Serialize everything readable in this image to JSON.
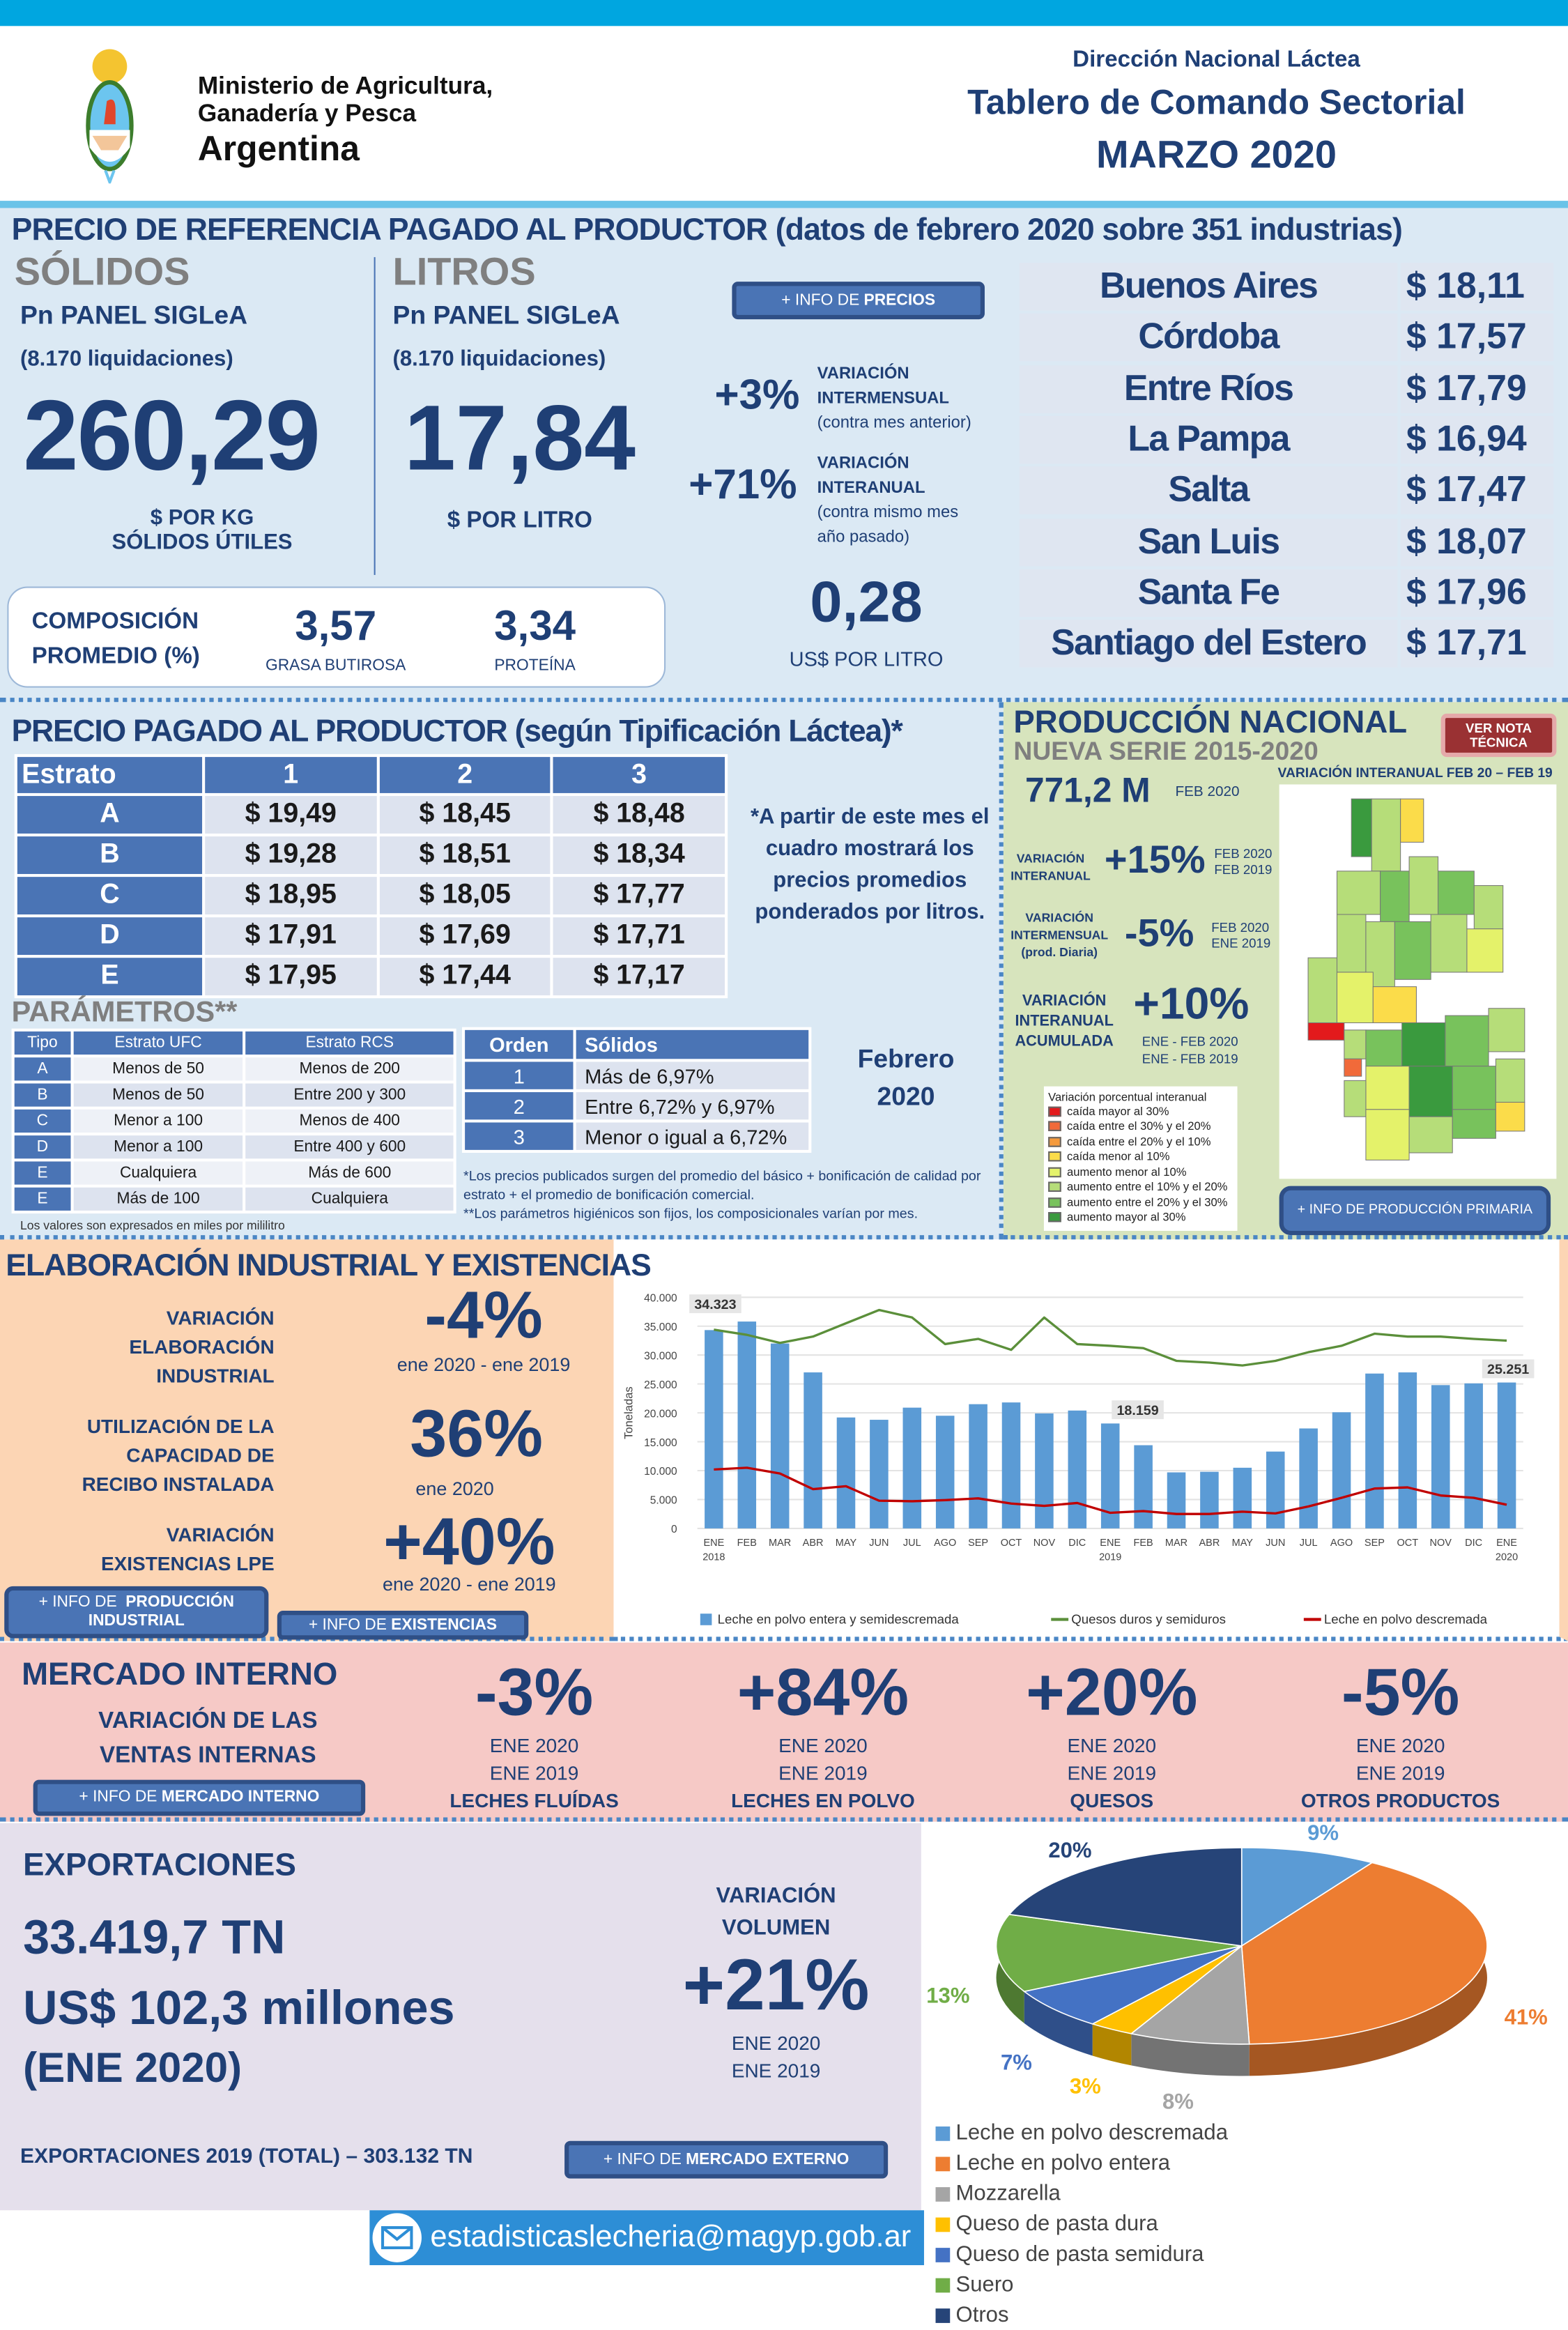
{
  "header": {
    "ministry_line1": "Ministerio de Agricultura,",
    "ministry_line2": "Ganadería y Pesca",
    "country": "Argentina",
    "direction": "Dirección Nacional Láctea",
    "title": "Tablero de Comando Sectorial",
    "period": "MARZO 2020"
  },
  "ref_price": {
    "title": "PRECIO DE REFERENCIA PAGADO AL PRODUCTOR (datos de febrero 2020 sobre 351 industrias)",
    "solidos": {
      "heading": "SÓLIDOS",
      "panel": "Pn PANEL SIGLeA",
      "liquidaciones": "(8.170 liquidaciones)",
      "value": "260,29",
      "unit_line1": "$ POR KG",
      "unit_line2": "SÓLIDOS ÚTILES"
    },
    "litros": {
      "heading": "LITROS",
      "panel": "Pn PANEL SIGLeA",
      "liquidaciones": "(8.170 liquidaciones)",
      "value": "17,84",
      "unit": "$ POR LITRO"
    },
    "info_button_prefix": "+ INFO DE",
    "info_button_bold": "PRECIOS",
    "var_intermensual": {
      "value": "+3%",
      "label1": "VARIACIÓN",
      "label2": "INTERMENSUAL",
      "note": "(contra mes anterior)"
    },
    "var_interanual": {
      "value": "+71%",
      "label1": "VARIACIÓN",
      "label2": "INTERANUAL",
      "note1": "(contra mismo mes",
      "note2": "año pasado)"
    },
    "usd": {
      "value": "0,28",
      "unit": "US$ POR LITRO"
    },
    "composicion": {
      "label1": "COMPOSICIÓN",
      "label2": "PROMEDIO (%)",
      "grasa": "3,57",
      "grasa_label": "GRASA BUTIROSA",
      "proteina": "3,34",
      "proteina_label": "PROTEÍNA"
    },
    "provinces": [
      {
        "name": "Buenos Aires",
        "price": "$ 18,11"
      },
      {
        "name": "Córdoba",
        "price": "$ 17,57"
      },
      {
        "name": "Entre Ríos",
        "price": "$ 17,79"
      },
      {
        "name": "La Pampa",
        "price": "$ 16,94"
      },
      {
        "name": "Salta",
        "price": "$ 17,47"
      },
      {
        "name": "San Luis",
        "price": "$ 18,07"
      },
      {
        "name": "Santa Fe",
        "price": "$ 17,96"
      },
      {
        "name": "Santiago del Estero",
        "price": "$ 17,71"
      }
    ]
  },
  "tipificacion": {
    "title": "PRECIO PAGADO AL PRODUCTOR (según Tipificación Láctea)*",
    "headers": [
      "Estrato",
      "1",
      "2",
      "3"
    ],
    "rows": [
      [
        "A",
        "$ 19,49",
        "$ 18,45",
        "$ 18,48"
      ],
      [
        "B",
        "$ 19,28",
        "$ 18,51",
        "$ 18,34"
      ],
      [
        "C",
        "$ 18,95",
        "$ 18,05",
        "$ 17,77"
      ],
      [
        "D",
        "$ 17,91",
        "$ 17,69",
        "$ 17,71"
      ],
      [
        "E",
        "$ 17,95",
        "$ 17,44",
        "$ 17,17"
      ]
    ],
    "note": "*A partir de este mes el cuadro mostrará los precios promedios ponderados por litros.",
    "params_title": "PARÁMETROS**",
    "params_headers": [
      "Tipo",
      "Estrato UFC",
      "Estrato RCS"
    ],
    "params_rows": [
      [
        "A",
        "Menos de 50",
        "Menos de 200"
      ],
      [
        "B",
        "Menos de 50",
        "Entre 200 y 300"
      ],
      [
        "C",
        "Menor a 100",
        "Menos de 400"
      ],
      [
        "D",
        "Menor a 100",
        "Entre 400 y 600"
      ],
      [
        "E",
        "Cualquiera",
        "Más de 600"
      ],
      [
        "E",
        "Más de 100",
        "Cualquiera"
      ]
    ],
    "params_note": "Los valores son expresados en miles por mililitro",
    "solidos_headers": [
      "Orden",
      "Sólidos"
    ],
    "solidos_rows": [
      [
        "1",
        "Más de 6,97%"
      ],
      [
        "2",
        "Entre 6,72% y 6,97%"
      ],
      [
        "3",
        "Menor o igual a 6,72%"
      ]
    ],
    "month_line1": "Febrero",
    "month_line2": "2020",
    "footnote1": "*Los precios publicados surgen del promedio del básico + bonificación de calidad por estrato + el promedio de bonificación comercial.",
    "footnote2": "**Los parámetros higiénicos son fijos, los composicionales varían por mes."
  },
  "produccion": {
    "title": "PRODUCCIÓN NACIONAL",
    "subtitle": "NUEVA SERIE 2015-2020",
    "nota_button": "VER NOTA TÉCNICA",
    "value": "771,2 M",
    "value_period": "FEB 2020",
    "map_title": "VARIACIÓN INTERANUAL FEB 20 – FEB 19",
    "interanual": {
      "l1": "VARIACIÓN",
      "l2": "INTERANUAL",
      "value": "+15%",
      "p1": "FEB 2020",
      "p2": "FEB 2019"
    },
    "intermensual": {
      "l1": "VARIACIÓN",
      "l2": "INTERMENSUAL",
      "l3": "(prod. Diaria)",
      "value": "-5%",
      "p1": "FEB 2020",
      "p2": "ENE 2019"
    },
    "acumulada": {
      "l1": "VARIACIÓN",
      "l2": "INTERANUAL",
      "l3": "ACUMULADA",
      "value": "+10%",
      "p1": "ENE - FEB 2020",
      "p2": "ENE - FEB 2019"
    },
    "legend_title": "Variación porcentual interanual",
    "legend": [
      {
        "label": "caída mayor al 30%",
        "color": "#e31a1c"
      },
      {
        "label": "caída entre el 30% y el 20%",
        "color": "#f16a3a"
      },
      {
        "label": "caída entre el 20% y el 10%",
        "color": "#f59a3c"
      },
      {
        "label": "caída menor al 10%",
        "color": "#fbdc4a"
      },
      {
        "label": "aumento menor al 10%",
        "color": "#e4f26a"
      },
      {
        "label": "aumento entre el 10% y el 20%",
        "color": "#b6dd79"
      },
      {
        "label": "aumento entre el 20% y el 30%",
        "color": "#78c25c"
      },
      {
        "label": "aumento mayor al 30%",
        "color": "#3a9a3e"
      }
    ],
    "info_button": "+ INFO DE PRODUCCIÓN PRIMARIA"
  },
  "industrial": {
    "title": "ELABORACIÓN INDUSTRIAL Y EXISTENCIAS",
    "elab": {
      "l1": "VARIACIÓN",
      "l2": "ELABORACIÓN",
      "l3": "INDUSTRIAL",
      "value": "-4%",
      "period": "ene 2020 -  ene 2019"
    },
    "cap": {
      "l1": "UTILIZACIÓN DE LA",
      "l2": "CAPACIDAD DE",
      "l3": "RECIBO INSTALADA",
      "value": "36%",
      "period": "ene 2020"
    },
    "exist": {
      "l1": "VARIACIÓN",
      "l2": "EXISTENCIAS LPE",
      "value": "+40%",
      "period": "ene 2020 - ene 2019"
    },
    "btn1_prefix": "+ INFO DE",
    "btn1_bold": "PRODUCCIÓN INDUSTRIAL",
    "btn2_prefix": "+ INFO DE",
    "btn2_bold": "EXISTENCIAS"
  },
  "chart_data": {
    "type": "bar+line",
    "ylabel": "Toneladas",
    "ylim": [
      0,
      40000
    ],
    "yticks": [
      "0",
      "5.000",
      "10.000",
      "15.000",
      "20.000",
      "25.000",
      "30.000",
      "35.000",
      "40.000"
    ],
    "categories": [
      "ENE",
      "FEB",
      "MAR",
      "ABR",
      "MAY",
      "JUN",
      "JUL",
      "AGO",
      "SEP",
      "OCT",
      "NOV",
      "DIC",
      "ENE",
      "FEB",
      "MAR",
      "ABR",
      "MAY",
      "JUN",
      "JUL",
      "AGO",
      "SEP",
      "OCT",
      "NOV",
      "DIC",
      "ENE"
    ],
    "year_labels": {
      "0": "2018",
      "12": "2019",
      "24": "2020"
    },
    "series": [
      {
        "name": "Leche en polvo entera y semidescremada",
        "type": "bar",
        "color": "#5b9bd5",
        "values": [
          34323,
          35800,
          32000,
          27000,
          19200,
          18800,
          20900,
          19500,
          21500,
          21800,
          19900,
          20400,
          18159,
          14400,
          9700,
          9800,
          10500,
          13300,
          17300,
          20100,
          26800,
          27000,
          24800,
          25100,
          25251
        ]
      },
      {
        "name": "Quesos duros y semiduros",
        "type": "line",
        "color": "#5b8f3a",
        "values": [
          34400,
          33500,
          32100,
          33200,
          35500,
          37800,
          36500,
          31900,
          32800,
          30900,
          36500,
          31900,
          31600,
          31200,
          29000,
          28700,
          28200,
          29000,
          30500,
          31600,
          33700,
          33200,
          33200,
          32800,
          32500
        ]
      },
      {
        "name": "Leche en polvo descremada",
        "type": "line",
        "color": "#c00000",
        "values": [
          10200,
          10500,
          9500,
          6800,
          7300,
          4800,
          4700,
          4900,
          5200,
          4300,
          3900,
          4400,
          2700,
          3000,
          2500,
          2500,
          2900,
          2600,
          3800,
          5300,
          6900,
          7100,
          5700,
          5300,
          4100
        ]
      }
    ],
    "data_labels": [
      {
        "index": 0,
        "text": "34.323"
      },
      {
        "index": 12,
        "text": "18.159"
      },
      {
        "index": 24,
        "text": "25.251"
      }
    ]
  },
  "mercado": {
    "title": "MERCADO INTERNO",
    "sub1": "VARIACIÓN DE LAS",
    "sub2": "VENTAS INTERNAS",
    "btn_prefix": "+ INFO DE",
    "btn_bold": "MERCADO INTERNO",
    "items": [
      {
        "value": "-3%",
        "p1": "ENE 2020",
        "p2": "ENE 2019",
        "label": "LECHES FLUÍDAS"
      },
      {
        "value": "+84%",
        "p1": "ENE 2020",
        "p2": "ENE 2019",
        "label": "LECHES EN POLVO"
      },
      {
        "value": "+20%",
        "p1": "ENE 2020",
        "p2": "ENE 2019",
        "label": "QUESOS"
      },
      {
        "value": "-5%",
        "p1": "ENE 2020",
        "p2": "ENE 2019",
        "label": "OTROS PRODUCTOS"
      }
    ]
  },
  "export": {
    "title": "EXPORTACIONES",
    "tn": "33.419,7 TN",
    "usd": "US$ 102,3 millones",
    "period": "(ENE 2020)",
    "var_l1": "VARIACIÓN",
    "var_l2": "VOLUMEN",
    "var_value": "+21%",
    "p1": "ENE 2020",
    "p2": "ENE 2019",
    "total": "EXPORTACIONES 2019 (TOTAL) – 303.132 TN",
    "btn_prefix": "+ INFO DE",
    "btn_bold": "MERCADO EXTERNO",
    "pie": {
      "type": "pie",
      "slices": [
        {
          "name": "Leche en polvo descremada",
          "value": 9,
          "label": "9%",
          "color": "#5b9bd5"
        },
        {
          "name": "Leche en polvo entera",
          "value": 41,
          "label": "41%",
          "color": "#ed7d31"
        },
        {
          "name": "Mozzarella",
          "value": 8,
          "label": "8%",
          "color": "#a5a5a5"
        },
        {
          "name": "Queso de pasta dura",
          "value": 3,
          "label": "3%",
          "color": "#ffc000"
        },
        {
          "name": "Queso de pasta semidura",
          "value": 7,
          "label": "7%",
          "color": "#4472c4"
        },
        {
          "name": "Suero",
          "value": 13,
          "label": "13%",
          "color": "#70ad47"
        },
        {
          "name": "Otros",
          "value": 20,
          "label": "20%",
          "color": "#264478"
        }
      ]
    }
  },
  "footer": {
    "email": "estadisticaslecheria@magyp.gob.ar"
  }
}
